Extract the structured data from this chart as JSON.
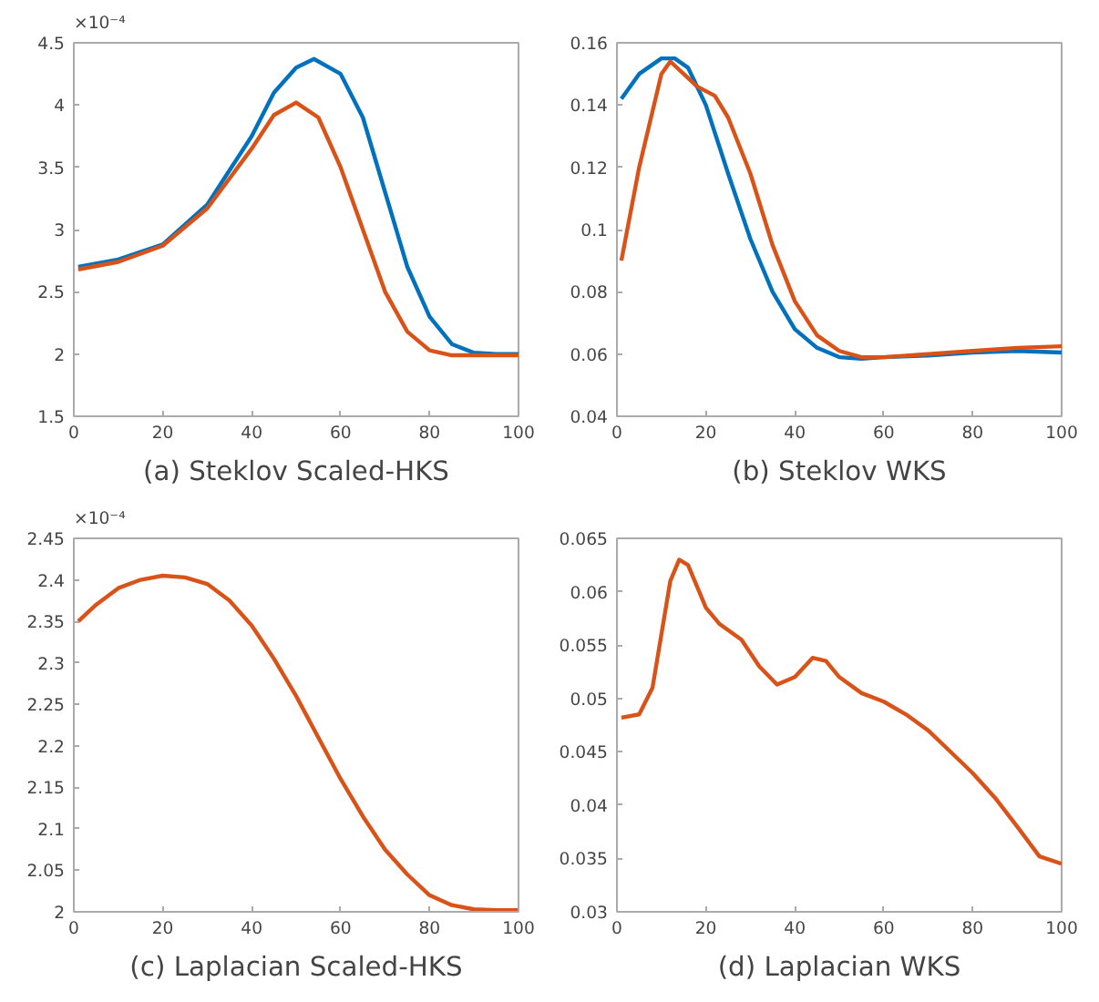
{
  "chart_data": [
    {
      "type": "line",
      "title": "(a) Steklov Scaled-HKS",
      "annotations": [
        "×10⁻⁴"
      ],
      "xlim": [
        0,
        100
      ],
      "xticks": [
        0,
        20,
        40,
        60,
        80,
        100
      ],
      "ylim": [
        1.5,
        4.5
      ],
      "yticks": [
        1.5,
        2,
        2.5,
        3,
        3.5,
        4,
        4.5
      ],
      "grid": false,
      "series": [
        {
          "color": "#0072bd",
          "x": [
            1,
            10,
            20,
            30,
            40,
            45,
            50,
            54,
            60,
            65,
            70,
            75,
            80,
            85,
            90,
            95,
            100
          ],
          "values": [
            2.7,
            2.76,
            2.88,
            3.2,
            3.75,
            4.1,
            4.3,
            4.37,
            4.25,
            3.9,
            3.3,
            2.7,
            2.3,
            2.08,
            2.01,
            2.0,
            2.0
          ]
        },
        {
          "color": "#d95319",
          "x": [
            1,
            10,
            20,
            30,
            40,
            45,
            50,
            55,
            60,
            65,
            70,
            75,
            80,
            85,
            90,
            100
          ],
          "values": [
            2.68,
            2.74,
            2.87,
            3.17,
            3.65,
            3.92,
            4.02,
            3.9,
            3.5,
            3.0,
            2.5,
            2.18,
            2.03,
            1.99,
            1.99,
            1.99
          ]
        }
      ]
    },
    {
      "type": "line",
      "title": "(b) Steklov WKS",
      "xlim": [
        0,
        100
      ],
      "xticks": [
        0,
        20,
        40,
        60,
        80,
        100
      ],
      "ylim": [
        0.04,
        0.16
      ],
      "yticks": [
        0.04,
        0.06,
        0.08,
        0.1,
        0.12,
        0.14,
        0.16
      ],
      "grid": false,
      "series": [
        {
          "color": "#0072bd",
          "x": [
            1,
            5,
            10,
            13,
            16,
            20,
            25,
            30,
            35,
            40,
            45,
            50,
            55,
            60,
            70,
            80,
            90,
            100
          ],
          "values": [
            0.142,
            0.15,
            0.155,
            0.155,
            0.152,
            0.14,
            0.118,
            0.097,
            0.08,
            0.068,
            0.062,
            0.059,
            0.0585,
            0.059,
            0.0595,
            0.0605,
            0.061,
            0.0605
          ]
        },
        {
          "color": "#d95319",
          "x": [
            1,
            5,
            10,
            12,
            15,
            18,
            22,
            25,
            30,
            35,
            40,
            45,
            50,
            55,
            60,
            70,
            80,
            90,
            100
          ],
          "values": [
            0.09,
            0.12,
            0.15,
            0.154,
            0.15,
            0.146,
            0.143,
            0.136,
            0.118,
            0.095,
            0.077,
            0.066,
            0.061,
            0.059,
            0.059,
            0.06,
            0.061,
            0.062,
            0.0625
          ]
        }
      ]
    },
    {
      "type": "line",
      "title": "(c) Laplacian Scaled-HKS",
      "annotations": [
        "×10⁻⁴"
      ],
      "xlim": [
        0,
        100
      ],
      "xticks": [
        0,
        20,
        40,
        60,
        80,
        100
      ],
      "ylim": [
        2,
        2.45
      ],
      "yticks": [
        2,
        2.05,
        2.1,
        2.15,
        2.2,
        2.25,
        2.3,
        2.35,
        2.4,
        2.45
      ],
      "grid": false,
      "series": [
        {
          "color": "#d95319",
          "x": [
            1,
            5,
            10,
            15,
            20,
            25,
            30,
            35,
            40,
            45,
            50,
            55,
            60,
            65,
            70,
            75,
            80,
            85,
            90,
            95,
            100
          ],
          "values": [
            2.35,
            2.37,
            2.39,
            2.4,
            2.405,
            2.403,
            2.395,
            2.375,
            2.345,
            2.305,
            2.26,
            2.21,
            2.16,
            2.115,
            2.075,
            2.045,
            2.02,
            2.008,
            2.003,
            2.002,
            2.002
          ]
        }
      ]
    },
    {
      "type": "line",
      "title": "(d) Laplacian WKS",
      "xlim": [
        0,
        100
      ],
      "xticks": [
        0,
        20,
        40,
        60,
        80,
        100
      ],
      "ylim": [
        0.03,
        0.065
      ],
      "yticks": [
        0.03,
        0.035,
        0.04,
        0.045,
        0.05,
        0.055,
        0.06,
        0.065
      ],
      "grid": false,
      "series": [
        {
          "color": "#d95319",
          "x": [
            1,
            5,
            8,
            10,
            12,
            14,
            16,
            20,
            23,
            28,
            32,
            36,
            40,
            44,
            47,
            50,
            55,
            60,
            65,
            70,
            75,
            80,
            85,
            90,
            95,
            100
          ],
          "values": [
            0.0482,
            0.0485,
            0.051,
            0.056,
            0.061,
            0.063,
            0.0625,
            0.0585,
            0.057,
            0.0555,
            0.053,
            0.0513,
            0.052,
            0.0538,
            0.0535,
            0.052,
            0.0505,
            0.0497,
            0.0485,
            0.047,
            0.045,
            0.043,
            0.0407,
            0.038,
            0.0352,
            0.0345
          ]
        }
      ]
    }
  ]
}
